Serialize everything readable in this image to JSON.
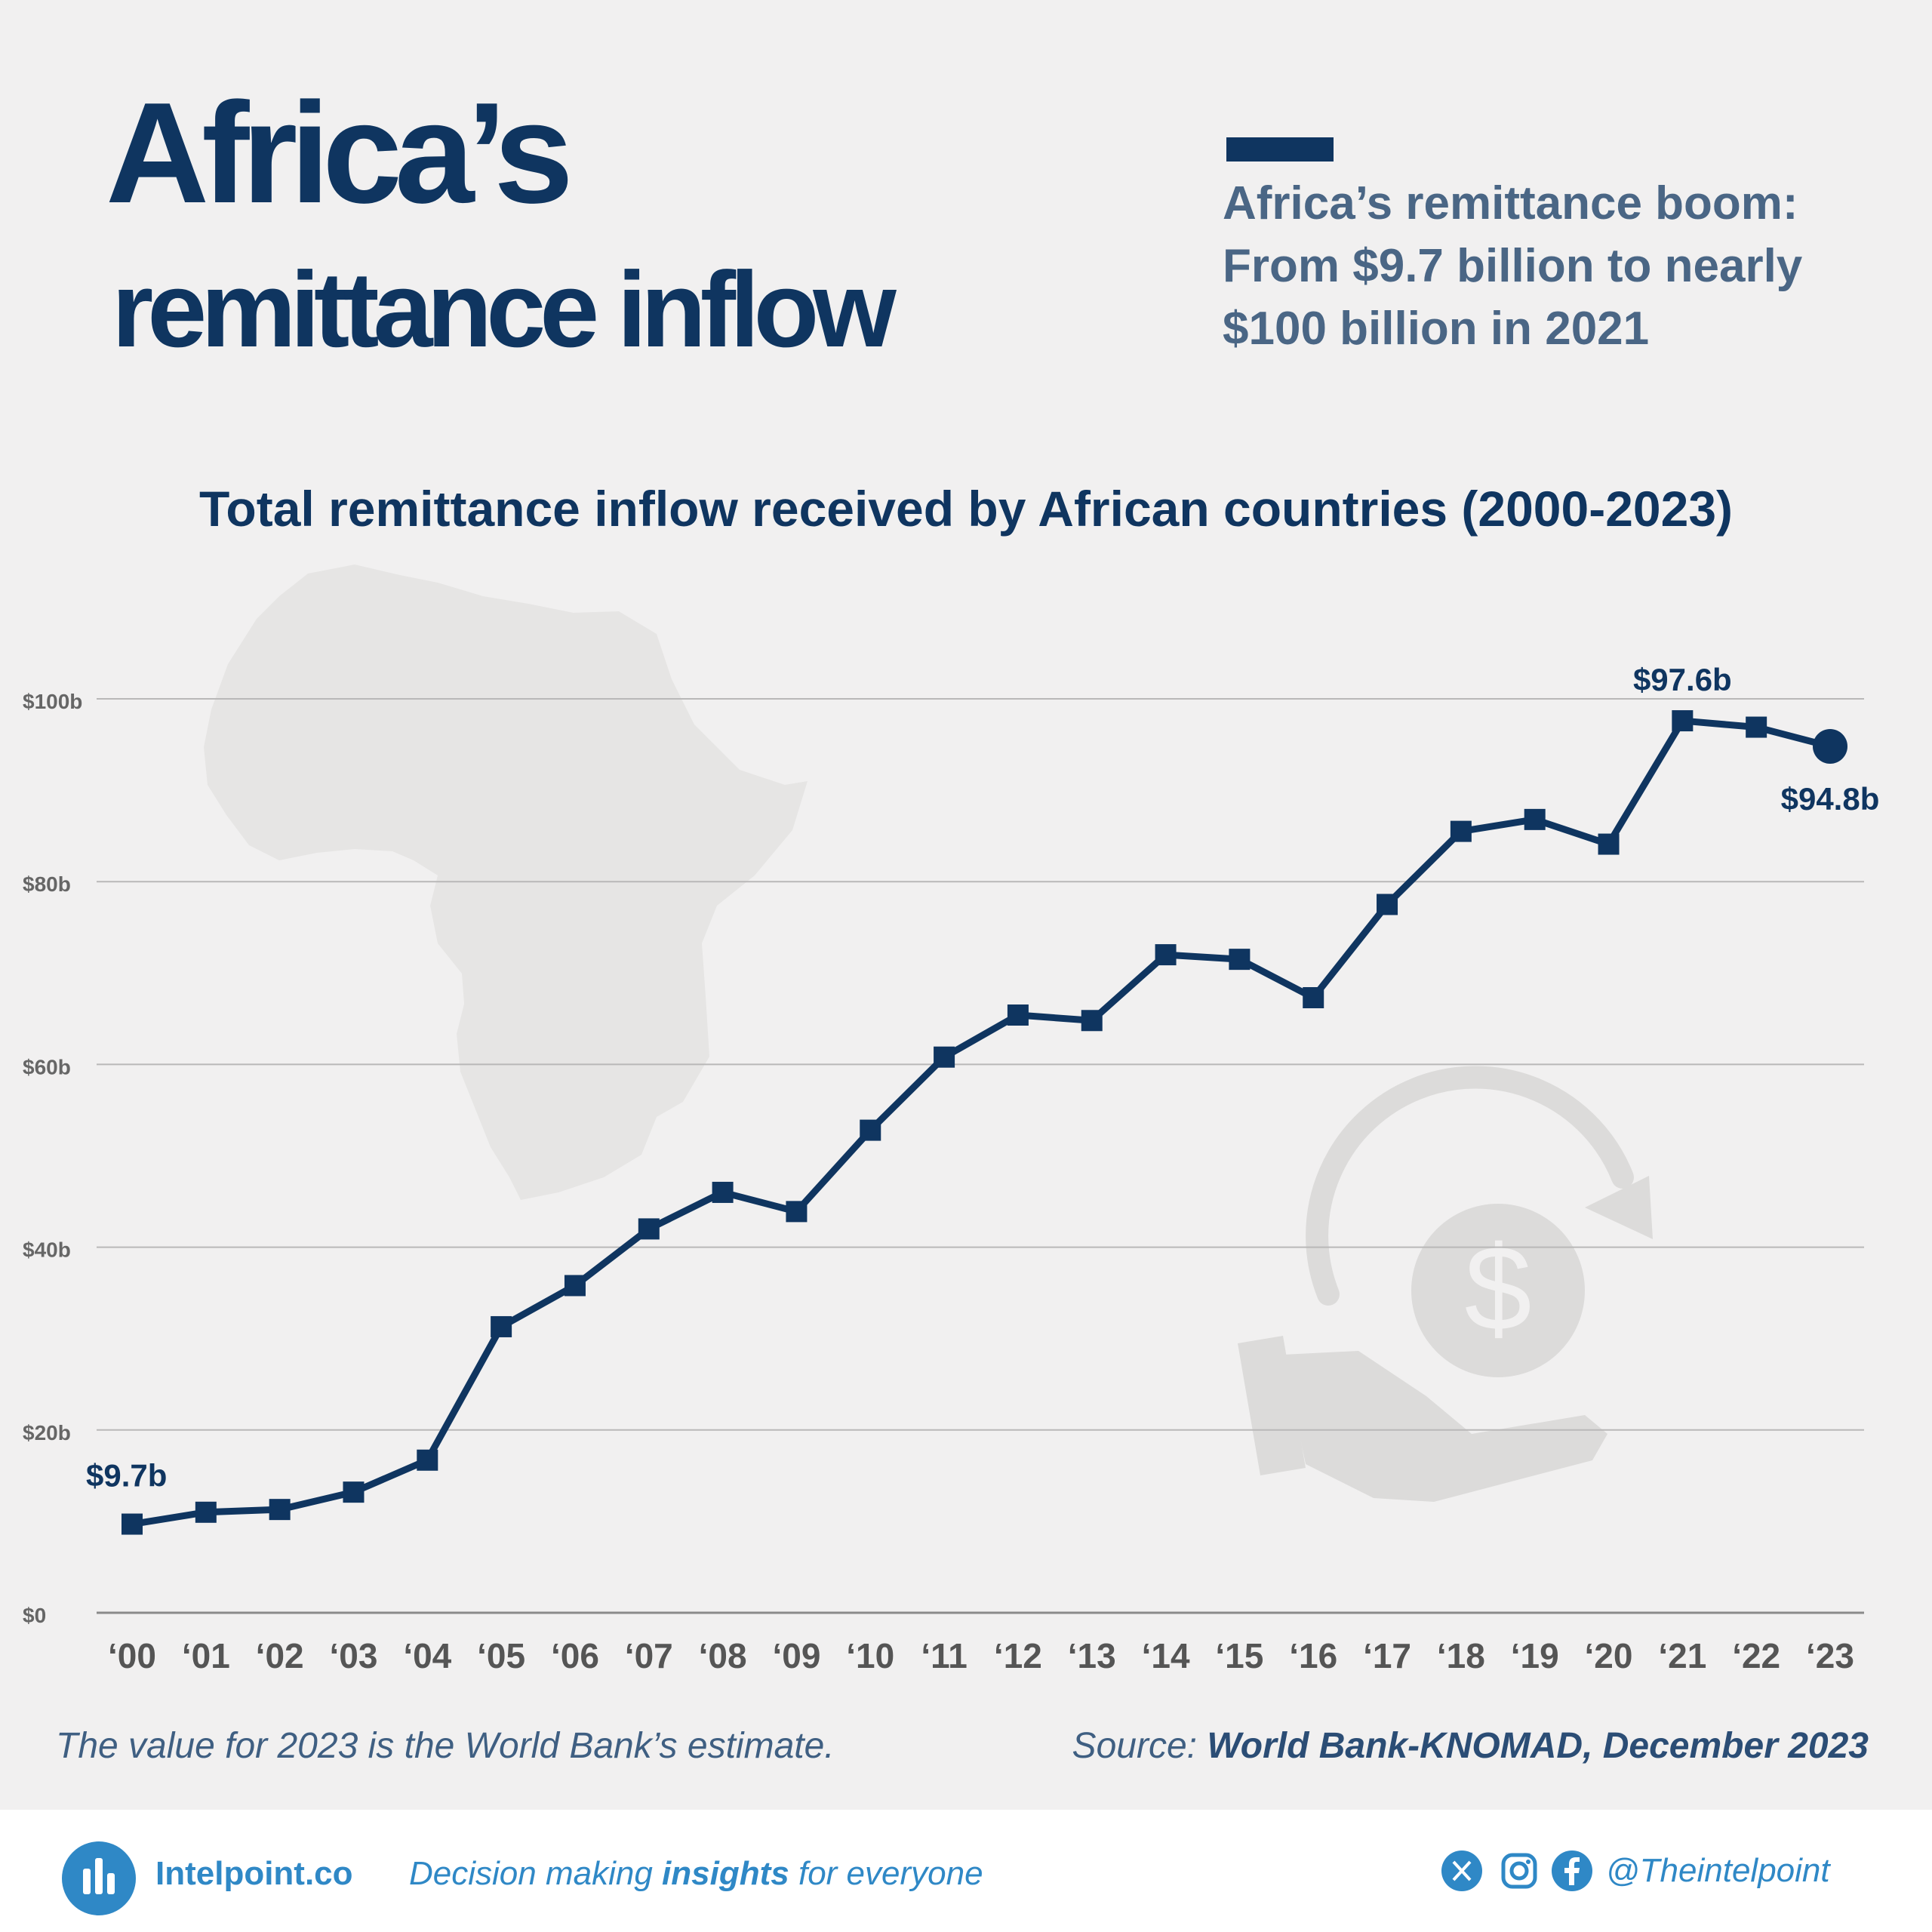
{
  "header": {
    "title_line1": "Africa’s",
    "title_line2": "remittance inflow",
    "subtitle": "Africa’s remittance boom: From $9.7 billion to nearly $100 billion in 2021"
  },
  "chart_data": {
    "type": "line",
    "title": "Total remittance inflow received by African countries (2000-2023)",
    "categories": [
      "‘00",
      "‘01",
      "‘02",
      "‘03",
      "‘04",
      "‘05",
      "‘06",
      "‘07",
      "‘08",
      "‘09",
      "‘10",
      "‘11",
      "‘12",
      "‘13",
      "‘14",
      "‘15",
      "‘16",
      "‘17",
      "‘18",
      "‘19",
      "‘20",
      "‘21",
      "‘22",
      "‘23"
    ],
    "series": [
      {
        "values": [
          9.7,
          11.0,
          11.3,
          13.2,
          16.7,
          31.3,
          35.8,
          42.0,
          46.0,
          43.9,
          52.8,
          60.8,
          65.4,
          64.8,
          72.0,
          71.5,
          67.3,
          77.5,
          85.5,
          86.8,
          84.1,
          97.6,
          96.9,
          94.8
        ]
      }
    ],
    "yticks": [
      "$0",
      "$20b",
      "$40b",
      "$60b",
      "$80b",
      "$100b"
    ],
    "ylim": [
      0,
      100
    ],
    "grid": true,
    "annotations": [
      {
        "index": 0,
        "text": "$9.7b"
      },
      {
        "index": 21,
        "text": "$97.6b"
      },
      {
        "index": 23,
        "text": "$94.8b"
      }
    ],
    "line_color": "#0f3560"
  },
  "notes": {
    "estimate_note": "The value for 2023 is the World Bank’s estimate.",
    "source_label": "Source:",
    "source_name": "World Bank-KNOMAD, December 2023"
  },
  "footer": {
    "brand": "Intelpoint.co",
    "tagline_pre": "Decision making",
    "tagline_bold": "insights",
    "tagline_post": "for everyone",
    "handle": "@Theintelpoint",
    "icons": [
      "intelpoint-logo-icon",
      "x-icon",
      "instagram-icon",
      "facebook-icon"
    ]
  }
}
